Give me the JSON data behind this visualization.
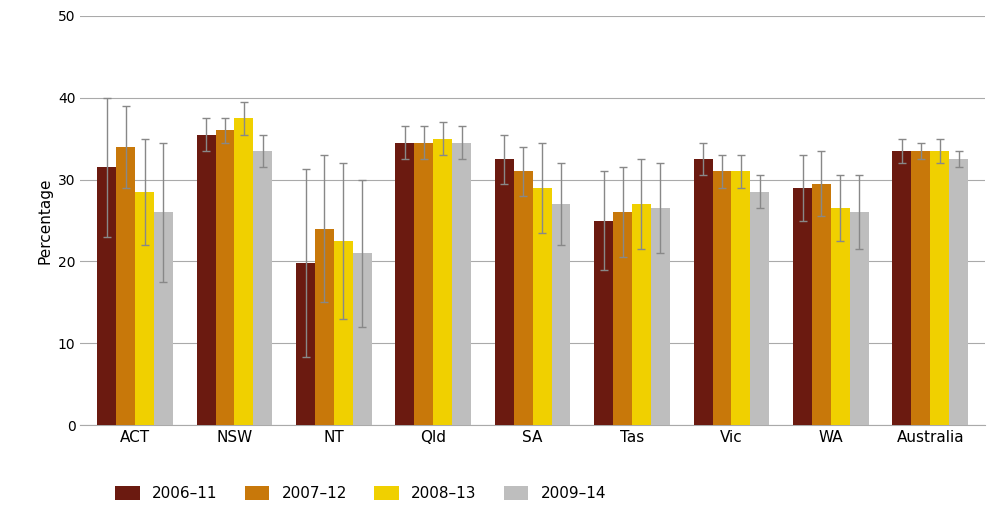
{
  "categories": [
    "ACT",
    "NSW",
    "NT",
    "Qld",
    "SA",
    "Tas",
    "Vic",
    "WA",
    "Australia"
  ],
  "series": {
    "2006-11": {
      "values": [
        31.5,
        35.5,
        19.8,
        34.5,
        32.5,
        25.0,
        32.5,
        29.0,
        33.5
      ],
      "errors": [
        8.5,
        2.0,
        11.5,
        2.0,
        3.0,
        6.0,
        2.0,
        4.0,
        1.5
      ],
      "color": "#6B1A10"
    },
    "2007-12": {
      "values": [
        34.0,
        36.0,
        24.0,
        34.5,
        31.0,
        26.0,
        31.0,
        29.5,
        33.5
      ],
      "errors": [
        5.0,
        1.5,
        9.0,
        2.0,
        3.0,
        5.5,
        2.0,
        4.0,
        1.0
      ],
      "color": "#C8780A"
    },
    "2008-13": {
      "values": [
        28.5,
        37.5,
        22.5,
        35.0,
        29.0,
        27.0,
        31.0,
        26.5,
        33.5
      ],
      "errors": [
        6.5,
        2.0,
        9.5,
        2.0,
        5.5,
        5.5,
        2.0,
        4.0,
        1.5
      ],
      "color": "#F0D000"
    },
    "2009-14": {
      "values": [
        26.0,
        33.5,
        21.0,
        34.5,
        27.0,
        26.5,
        28.5,
        26.0,
        32.5
      ],
      "errors": [
        8.5,
        2.0,
        9.0,
        2.0,
        5.0,
        5.5,
        2.0,
        4.5,
        1.0
      ],
      "color": "#BEBEBE"
    }
  },
  "series_order": [
    "2006-11",
    "2007-12",
    "2008-13",
    "2009-14"
  ],
  "legend_labels": [
    "2006–11",
    "2007–12",
    "2008–13",
    "2009–14"
  ],
  "ylabel": "Percentage",
  "ylim": [
    0,
    50
  ],
  "yticks": [
    0,
    10,
    20,
    30,
    40,
    50
  ],
  "background_color": "#FFFFFF",
  "bar_width": 0.19,
  "error_capsize": 3,
  "error_color": "#888888",
  "error_linewidth": 1.0
}
